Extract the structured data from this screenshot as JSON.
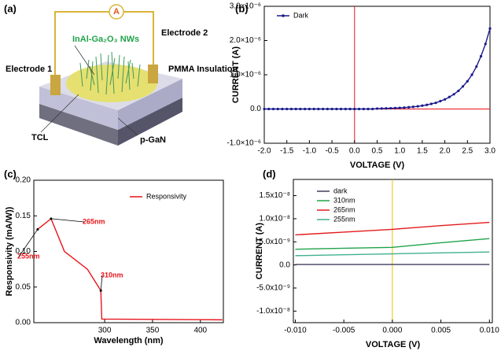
{
  "diagram": {
    "panel_label": "(a)",
    "ammeter": "A",
    "electrode_1": "Electrode 1",
    "electrode_2": "Electrode 2",
    "nanowires": "InAl-Ga₂O₃ NWs",
    "insulation": "PMMA Insulation",
    "tcl": "TCL",
    "substrate": "p-GaN"
  },
  "chart_data": [
    {
      "type": "line",
      "panel_label": "(b)",
      "x_label": "VOLTAGE (V)",
      "y_label": "CURRENT (A)",
      "markers": true,
      "x": [
        -2,
        -1.9,
        -1.8,
        -1.7,
        -1.6,
        -1.5,
        -1.4,
        -1.3,
        -1.2,
        -1.1,
        -1,
        -0.9,
        -0.8,
        -0.7,
        -0.6,
        -0.5,
        -0.4,
        -0.3,
        -0.2,
        -0.1,
        0,
        0.1,
        0.2,
        0.3,
        0.4,
        0.5,
        0.6,
        0.7,
        0.8,
        0.9,
        1,
        1.1,
        1.2,
        1.3,
        1.4,
        1.5,
        1.6,
        1.7,
        1.8,
        1.9,
        2,
        2.1,
        2.2,
        2.3,
        2.4,
        2.5,
        2.6,
        2.7,
        2.8,
        2.9,
        3
      ],
      "series": [
        {
          "name": "Dark",
          "color": "#1a1a8c",
          "values": [
            0,
            0,
            0,
            0,
            0,
            0,
            0,
            0,
            0,
            0,
            0,
            0,
            0,
            0,
            0,
            0,
            0,
            0,
            0,
            0,
            0,
            0,
            0,
            0,
            0,
            1.1e-08,
            1.4e-08,
            1.7e-08,
            2.2e-08,
            2.7e-08,
            3.3e-08,
            4.1e-08,
            5.1e-08,
            6.3e-08,
            7.8e-08,
            9.7e-08,
            1.2e-07,
            1.5e-07,
            1.8e-07,
            2.3e-07,
            2.8e-07,
            3.5e-07,
            4.3e-07,
            5.3e-07,
            6.6e-07,
            8.1e-07,
            1e-06,
            1.24e-06,
            1.54e-06,
            1.9e-06,
            2.35e-06
          ]
        }
      ],
      "xlim": [
        -2,
        3
      ],
      "xticks": [
        {
          "value": -2,
          "label": "-2.0"
        },
        {
          "value": -1.5,
          "label": "-1.5"
        },
        {
          "value": -1,
          "label": "-1.0"
        },
        {
          "value": -0.5,
          "label": "-0.5"
        },
        {
          "value": 0,
          "label": "0.0"
        },
        {
          "value": 0.5,
          "label": "0.5"
        },
        {
          "value": 1,
          "label": "1.0"
        },
        {
          "value": 1.5,
          "label": "1.5"
        },
        {
          "value": 2,
          "label": "2.0"
        },
        {
          "value": 2.5,
          "label": "2.5"
        },
        {
          "value": 3,
          "label": "3.0"
        }
      ],
      "ylim": [
        -1e-06,
        3e-06
      ],
      "yticks": [
        {
          "value": -1e-06,
          "label": "-1.0×10⁻⁶"
        },
        {
          "value": 0,
          "label": "0.0"
        },
        {
          "value": 1e-06,
          "label": "1.0×10⁻⁶"
        },
        {
          "value": 2e-06,
          "label": "2.0×10⁻⁶"
        },
        {
          "value": 3e-06,
          "label": "3.0×10⁻⁶"
        }
      ]
    },
    {
      "type": "line",
      "panel_label": "(c)",
      "x_label": "Wavelength (nm)",
      "y_label": "Responsivity (mA/W))",
      "markers": false,
      "x": [
        230,
        244,
        258,
        282,
        296,
        297,
        423
      ],
      "series": [
        {
          "name": "Responsivity",
          "color": "#e8141c",
          "values": [
            0.131,
            0.146,
            0.1,
            0.075,
            0.045,
            0.005,
            0.004
          ]
        }
      ],
      "xlim": [
        226,
        424
      ],
      "xticks": [
        300,
        350,
        400
      ],
      "ylim": [
        0,
        0.2
      ],
      "yticks": [
        {
          "value": 0,
          "label": "0.00"
        },
        {
          "value": 0.05,
          "label": "0.05"
        },
        {
          "value": 0.1,
          "label": "0.10"
        },
        {
          "value": 0.15,
          "label": "0.15"
        },
        {
          "value": 0.2,
          "label": "0.20"
        }
      ],
      "annotations": [
        "265nm",
        "255nm",
        "310nm"
      ]
    },
    {
      "type": "line",
      "panel_label": "(d)",
      "x_label": "VOLTAGE (V)",
      "y_label": "CURRENT (A)",
      "markers": false,
      "x": [
        -0.01,
        -0.005,
        0,
        0.005,
        0.01
      ],
      "series": [
        {
          "name": "dark",
          "color": "#3d3d5c",
          "values": [
            1e-10,
            1e-10,
            1e-10,
            1e-10,
            1e-10
          ]
        },
        {
          "name": "310nm",
          "color": "#1fa34a",
          "values": [
            3.4e-09,
            3.6e-09,
            3.8e-09,
            4.8e-09,
            5.7e-09
          ]
        },
        {
          "name": "265nm",
          "color": "#e31a1c",
          "values": [
            6.5e-09,
            7.1e-09,
            7.7e-09,
            8.5e-09,
            9.2e-09
          ]
        },
        {
          "name": "255nm",
          "color": "#40b090",
          "values": [
            2e-09,
            2.2e-09,
            2.4e-09,
            2.6e-09,
            2.8e-09
          ]
        }
      ],
      "xlim": [
        -0.0102,
        0.0103
      ],
      "xticks": [
        {
          "value": -0.01,
          "label": "-0.010"
        },
        {
          "value": -0.005,
          "label": "-0.005"
        },
        {
          "value": 0,
          "label": "0.000"
        },
        {
          "value": 0.005,
          "label": "0.005"
        },
        {
          "value": 0.01,
          "label": "0.010"
        }
      ],
      "ylim": [
        -1.25e-08,
        1.85e-08
      ],
      "yticks": [
        {
          "value": -1e-08,
          "label": "-1.0x10⁻⁸"
        },
        {
          "value": -5e-09,
          "label": "-5.0x10⁻⁹"
        },
        {
          "value": 0,
          "label": "0.0"
        },
        {
          "value": 5e-09,
          "label": "5.0x10⁻⁹"
        },
        {
          "value": 1e-08,
          "label": "1.0x10⁻⁸"
        },
        {
          "value": 1.5e-08,
          "label": "1.5x10⁻⁸"
        }
      ]
    }
  ]
}
